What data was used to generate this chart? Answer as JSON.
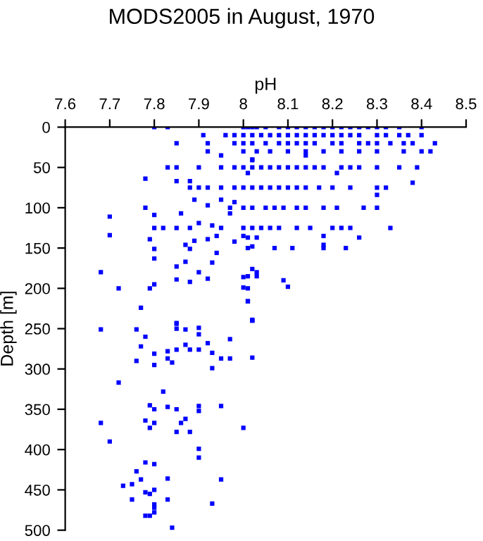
{
  "chart_data": {
    "type": "scatter",
    "title": "MODS2005 in August, 1970",
    "xlabel": "pH",
    "ylabel": "Depth [m]",
    "xlim": [
      7.6,
      8.5
    ],
    "xticks": [
      7.6,
      7.7,
      7.8,
      7.9,
      8,
      8.1,
      8.2,
      8.3,
      8.4,
      8.5
    ],
    "ylim": [
      500,
      0
    ],
    "yticks": [
      0,
      50,
      100,
      150,
      200,
      250,
      300,
      350,
      400,
      450,
      500
    ],
    "grid": false,
    "legend": false,
    "marker": "square",
    "series": [
      {
        "color": "#0000ff",
        "x": [
          7.8,
          7.83,
          8.0,
          8.01,
          8.02,
          8.03,
          8.05,
          8.08,
          8.1,
          8.12,
          8.14,
          8.16,
          8.18,
          8.2,
          8.22,
          8.24,
          8.26,
          8.28,
          8.3,
          8.32,
          8.35,
          8.4,
          7.91,
          7.96,
          7.98,
          8.0,
          8.02,
          8.04,
          8.06,
          8.08,
          8.1,
          8.12,
          8.14,
          8.16,
          8.18,
          8.2,
          8.22,
          8.24,
          8.26,
          8.3,
          8.32,
          8.35,
          8.37,
          8.4,
          7.85,
          7.92,
          7.98,
          8.0,
          8.02,
          8.05,
          8.08,
          8.1,
          8.12,
          8.14,
          8.16,
          8.2,
          8.22,
          8.26,
          8.28,
          8.3,
          8.33,
          8.36,
          8.38,
          8.43,
          7.92,
          8.0,
          8.03,
          8.06,
          8.1,
          8.14,
          8.18,
          8.22,
          8.26,
          8.3,
          8.36,
          8.4,
          8.42,
          7.95,
          8.14,
          8.02,
          8.02,
          7.83,
          7.85,
          7.9,
          7.95,
          7.98,
          8.0,
          8.02,
          8.04,
          8.06,
          8.08,
          8.1,
          8.12,
          8.14,
          8.16,
          8.18,
          8.22,
          8.24,
          8.26,
          8.3,
          8.35,
          8.39,
          8.01,
          8.21,
          7.78,
          7.85,
          7.88,
          8.38,
          7.88,
          7.9,
          7.92,
          7.95,
          7.98,
          8.0,
          8.02,
          8.04,
          8.06,
          8.08,
          8.1,
          8.12,
          8.14,
          8.17,
          8.2,
          8.24,
          8.3,
          8.32,
          8.3,
          7.89,
          7.95,
          7.98,
          7.92,
          7.78,
          7.97,
          8.0,
          8.02,
          8.05,
          8.07,
          8.09,
          8.12,
          8.14,
          8.18,
          8.21,
          8.27,
          8.3,
          7.7,
          7.8,
          7.86,
          7.97,
          7.8,
          7.82,
          7.85,
          7.88,
          7.95,
          8.0,
          8.02,
          8.04,
          8.06,
          8.08,
          8.12,
          8.15,
          8.2,
          8.22,
          8.24,
          8.33,
          7.93,
          7.9,
          7.7,
          7.79,
          7.92,
          7.94,
          8.0,
          8.01,
          8.03,
          8.26,
          8.18,
          7.89,
          7.98,
          7.87,
          7.8,
          7.88,
          7.94,
          8.02,
          8.01,
          8.07,
          8.11,
          8.18,
          8.23,
          8.18,
          7.8,
          7.93,
          7.87,
          7.85,
          7.68,
          7.9,
          8.02,
          8.03,
          8.03,
          8.01,
          7.92,
          8.0,
          7.85,
          7.8,
          7.88,
          8.09,
          7.72,
          7.79,
          8.0,
          8.01,
          8.1,
          8.01,
          7.77,
          8.01,
          8.02,
          8.02,
          7.85,
          7.68,
          7.76,
          7.78,
          7.77,
          7.76,
          7.8,
          7.8,
          7.83,
          7.83,
          7.84,
          7.85,
          7.85,
          7.87,
          7.87,
          7.85,
          7.88,
          7.9,
          7.9,
          7.9,
          7.92,
          7.93,
          7.93,
          7.95,
          7.97,
          7.97,
          8.02,
          8.02,
          7.72,
          7.82,
          7.79,
          7.8,
          7.83,
          7.85,
          7.78,
          7.68,
          7.79,
          7.8,
          7.85,
          7.86,
          7.87,
          7.88,
          7.9,
          7.9,
          7.95,
          8.0,
          7.7,
          7.9,
          7.9,
          7.78,
          7.8,
          7.76,
          7.75,
          7.73,
          7.77,
          7.83,
          7.78,
          7.79,
          7.8,
          7.75,
          7.83,
          7.8,
          7.8,
          7.95,
          7.93,
          7.8,
          7.78,
          7.79,
          7.84
        ],
        "values": [
          0,
          0,
          0,
          0,
          0,
          0,
          0,
          0,
          0,
          0,
          0,
          0,
          0,
          0,
          0,
          0,
          0,
          0,
          0,
          0,
          0,
          0,
          10,
          10,
          10,
          10,
          10,
          10,
          10,
          10,
          10,
          10,
          10,
          10,
          10,
          10,
          10,
          10,
          10,
          10,
          10,
          10,
          10,
          10,
          20,
          20,
          20,
          20,
          20,
          20,
          20,
          20,
          20,
          20,
          20,
          20,
          20,
          20,
          20,
          20,
          20,
          20,
          20,
          20,
          30,
          30,
          30,
          30,
          30,
          30,
          30,
          30,
          30,
          30,
          30,
          30,
          30,
          35,
          35,
          40,
          41,
          50,
          50,
          50,
          50,
          50,
          50,
          50,
          50,
          50,
          50,
          50,
          50,
          50,
          50,
          50,
          50,
          50,
          50,
          50,
          50,
          50,
          57,
          57,
          64,
          67,
          67,
          69,
          75,
          75,
          75,
          75,
          75,
          75,
          75,
          75,
          75,
          75,
          75,
          75,
          75,
          75,
          75,
          75,
          75,
          75,
          84,
          90,
          90,
          93,
          97,
          100,
          100,
          100,
          100,
          100,
          100,
          100,
          100,
          100,
          100,
          100,
          100,
          100,
          111,
          109,
          107,
          107,
          125,
          125,
          125,
          125,
          125,
          125,
          125,
          125,
          125,
          125,
          125,
          125,
          125,
          125,
          125,
          125,
          122,
          119,
          134,
          139,
          139,
          135,
          135,
          137,
          137,
          137,
          135,
          141,
          142,
          146,
          151,
          151,
          156,
          148,
          150,
          150,
          150,
          150,
          150,
          146,
          163,
          168,
          167,
          173,
          180,
          180,
          176,
          180,
          185,
          185,
          188,
          186,
          189,
          195,
          192,
          190,
          200,
          200,
          199,
          200,
          198,
          216,
          224,
          216,
          239,
          240,
          243,
          251,
          251,
          260,
          272,
          290,
          281,
          295,
          278,
          287,
          292,
          244,
          250,
          251,
          270,
          276,
          276,
          249,
          257,
          276,
          268,
          280,
          299,
          287,
          287,
          263,
          240,
          286,
          317,
          328,
          345,
          350,
          347,
          350,
          364,
          367,
          373,
          367,
          378,
          367,
          362,
          378,
          346,
          352,
          346,
          373,
          390,
          399,
          410,
          416,
          418,
          427,
          443,
          445,
          437,
          436,
          453,
          455,
          450,
          462,
          462,
          468,
          472,
          437,
          467,
          478,
          482,
          482,
          497
        ]
      }
    ]
  }
}
